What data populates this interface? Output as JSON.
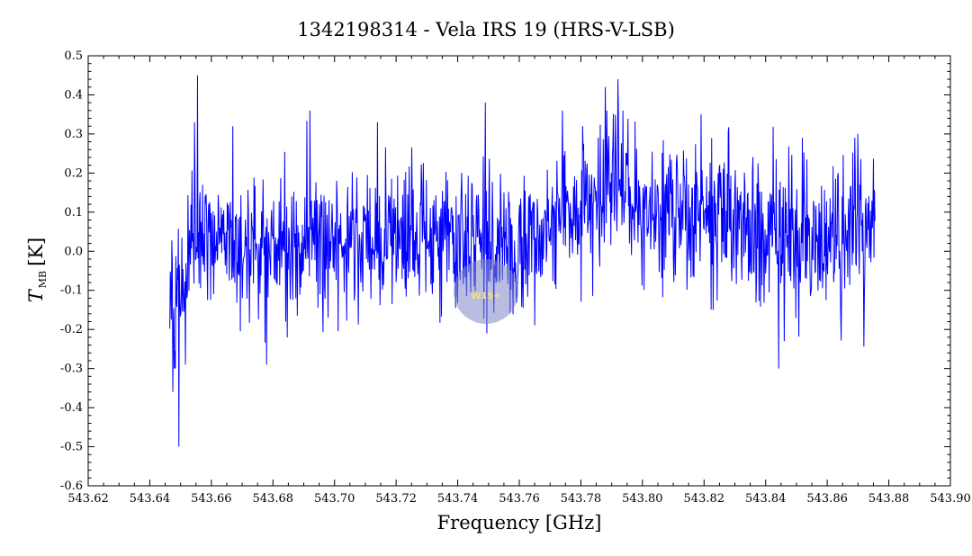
{
  "chart_data": {
    "type": "line",
    "title": "1342198314 - Vela IRS 19 (HRS-V-LSB)",
    "xlabel": "Frequency [GHz]",
    "ylabel": {
      "symbol": "T",
      "subscript": "MB",
      "unit": "[K]"
    },
    "xlim": [
      543.62,
      543.9
    ],
    "ylim": [
      -0.6,
      0.5
    ],
    "x_ticks": [
      543.62,
      543.64,
      543.66,
      543.68,
      543.7,
      543.72,
      543.74,
      543.76,
      543.78,
      543.8,
      543.82,
      543.84,
      543.86,
      543.88,
      543.9
    ],
    "y_ticks": [
      -0.6,
      -0.5,
      -0.4,
      -0.3,
      -0.2,
      -0.1,
      0.0,
      0.1,
      0.2,
      0.3,
      0.4,
      0.5
    ],
    "x_tick_labels": [
      "543.62",
      "543.64",
      "543.66",
      "543.68",
      "543.70",
      "543.72",
      "543.74",
      "543.76",
      "543.78",
      "543.80",
      "543.82",
      "543.84",
      "543.86",
      "543.88",
      "543.90"
    ],
    "y_tick_labels": [
      "-0.6",
      "-0.5",
      "-0.4",
      "-0.3",
      "-0.2",
      "-0.1",
      "0.0",
      "0.1",
      "0.2",
      "0.3",
      "0.4",
      "0.5"
    ],
    "grid": false,
    "series": [
      {
        "color": "#0000ff",
        "x_start": 543.6465,
        "x_end": 543.8755,
        "baseline": [
          {
            "x": 543.6465,
            "y": -0.08
          },
          {
            "x": 543.65,
            "y": -0.05
          },
          {
            "x": 543.655,
            "y": 0.04
          },
          {
            "x": 543.66,
            "y": 0.03
          },
          {
            "x": 543.68,
            "y": 0.02
          },
          {
            "x": 543.7,
            "y": 0.02
          },
          {
            "x": 543.72,
            "y": 0.02
          },
          {
            "x": 543.74,
            "y": 0.03
          },
          {
            "x": 543.76,
            "y": 0.02
          },
          {
            "x": 543.77,
            "y": 0.04
          },
          {
            "x": 543.78,
            "y": 0.14
          },
          {
            "x": 543.79,
            "y": 0.16
          },
          {
            "x": 543.8,
            "y": 0.12
          },
          {
            "x": 543.82,
            "y": 0.1
          },
          {
            "x": 543.84,
            "y": 0.06
          },
          {
            "x": 543.86,
            "y": 0.04
          },
          {
            "x": 543.8755,
            "y": 0.05
          }
        ],
        "noise_sigma": 0.09,
        "peaks": [
          {
            "x": 543.6495,
            "y": -0.5
          },
          {
            "x": 543.6475,
            "y": -0.36
          },
          {
            "x": 543.6515,
            "y": -0.29
          },
          {
            "x": 543.6555,
            "y": 0.45
          },
          {
            "x": 543.6545,
            "y": 0.33
          },
          {
            "x": 543.667,
            "y": 0.32
          },
          {
            "x": 543.678,
            "y": -0.29
          },
          {
            "x": 543.692,
            "y": 0.36
          },
          {
            "x": 543.714,
            "y": 0.33
          },
          {
            "x": 543.749,
            "y": 0.38
          },
          {
            "x": 543.7495,
            "y": -0.21
          },
          {
            "x": 543.774,
            "y": 0.36
          },
          {
            "x": 543.788,
            "y": 0.42
          },
          {
            "x": 543.792,
            "y": 0.44
          },
          {
            "x": 543.819,
            "y": 0.35
          },
          {
            "x": 543.823,
            "y": -0.15
          },
          {
            "x": 543.846,
            "y": -0.23
          },
          {
            "x": 543.852,
            "y": 0.29
          },
          {
            "x": 543.87,
            "y": 0.3
          }
        ]
      }
    ]
  },
  "watermark": {
    "text": "W15+",
    "icon": "hifi-watermark-icon"
  }
}
